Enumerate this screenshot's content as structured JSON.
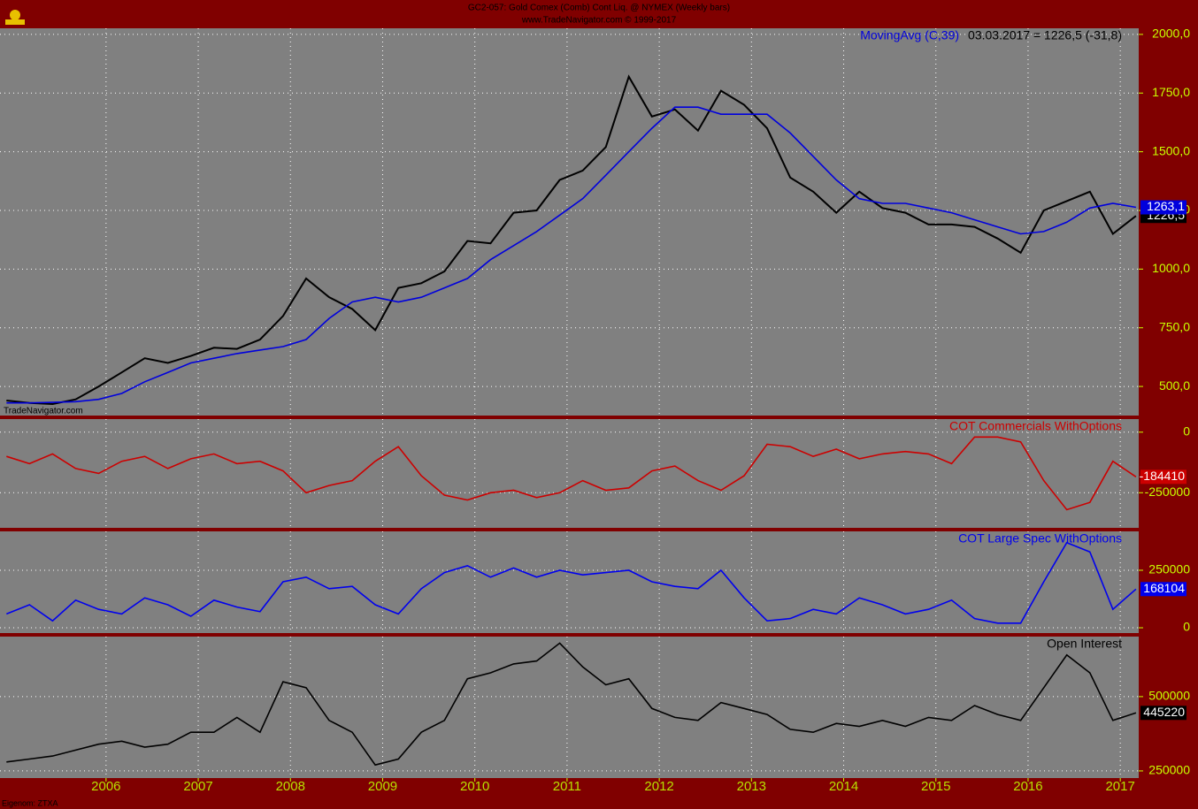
{
  "header": {
    "title": "GC2-057: Gold Comex (Comb) Cont Liq. @ NYMEX (Weekly bars)",
    "subtitle": "www.TradeNavigator.com © 1999-2017",
    "watermark": "TradeNavigator.com",
    "footer": "Eigenom: ZTXA"
  },
  "chart_data": [
    {
      "type": "line",
      "annotation": "03.03.2017 = 1226,5 (-31,8)",
      "x": [
        2004.92,
        2005.17,
        2005.42,
        2005.67,
        2005.92,
        2006.17,
        2006.42,
        2006.67,
        2006.92,
        2007.17,
        2007.42,
        2007.67,
        2007.92,
        2008.17,
        2008.42,
        2008.67,
        2008.92,
        2009.17,
        2009.42,
        2009.67,
        2009.92,
        2010.17,
        2010.42,
        2010.67,
        2010.92,
        2011.17,
        2011.42,
        2011.67,
        2011.92,
        2012.17,
        2012.42,
        2012.67,
        2012.92,
        2013.17,
        2013.42,
        2013.67,
        2013.92,
        2014.17,
        2014.42,
        2014.67,
        2014.92,
        2015.17,
        2015.42,
        2015.67,
        2015.92,
        2016.17,
        2016.42,
        2016.67,
        2016.92,
        2017.17
      ],
      "xlim": [
        2004.85,
        2017.2
      ],
      "ylim": [
        376,
        2026
      ],
      "yticks": [
        {
          "value": 500,
          "label": "500,0"
        },
        {
          "value": 750,
          "label": "750,0"
        },
        {
          "value": 1000,
          "label": "1000,0"
        },
        {
          "value": 1250,
          "label": "1250,0"
        },
        {
          "value": 1500,
          "label": "1500,0"
        },
        {
          "value": 1750,
          "label": "1750,0"
        },
        {
          "value": 2000,
          "label": "2000,0"
        }
      ],
      "grid": true,
      "series": [
        {
          "color": "#000000",
          "values": [
            440,
            430,
            425,
            445,
            500,
            560,
            620,
            600,
            630,
            665,
            660,
            700,
            800,
            960,
            880,
            830,
            740,
            920,
            940,
            990,
            1120,
            1110,
            1240,
            1250,
            1380,
            1420,
            1520,
            1820,
            1650,
            1680,
            1590,
            1760,
            1700,
            1600,
            1390,
            1330,
            1240,
            1330,
            1260,
            1240,
            1190,
            1190,
            1180,
            1130,
            1070,
            1250,
            1290,
            1330,
            1150,
            1226.5
          ],
          "last": {
            "value": 1226.5,
            "label": "1226,5"
          }
        },
        {
          "name": "MovingAvg (C,39)",
          "color": "#0000dd",
          "values": [
            430,
            430,
            432,
            435,
            445,
            470,
            520,
            560,
            600,
            620,
            640,
            655,
            670,
            700,
            790,
            860,
            880,
            860,
            880,
            920,
            960,
            1040,
            1100,
            1160,
            1230,
            1300,
            1400,
            1500,
            1600,
            1690,
            1690,
            1660,
            1660,
            1660,
            1580,
            1480,
            1380,
            1300,
            1280,
            1280,
            1260,
            1240,
            1210,
            1180,
            1150,
            1160,
            1200,
            1260,
            1280,
            1263.1
          ],
          "last": {
            "value": 1263.1,
            "label": "1263,1"
          }
        }
      ]
    },
    {
      "type": "line",
      "x": [
        2004.92,
        2005.17,
        2005.42,
        2005.67,
        2005.92,
        2006.17,
        2006.42,
        2006.67,
        2006.92,
        2007.17,
        2007.42,
        2007.67,
        2007.92,
        2008.17,
        2008.42,
        2008.67,
        2008.92,
        2009.17,
        2009.42,
        2009.67,
        2009.92,
        2010.17,
        2010.42,
        2010.67,
        2010.92,
        2011.17,
        2011.42,
        2011.67,
        2011.92,
        2012.17,
        2012.42,
        2012.67,
        2012.92,
        2013.17,
        2013.42,
        2013.67,
        2013.92,
        2014.17,
        2014.42,
        2014.67,
        2014.92,
        2015.17,
        2015.42,
        2015.67,
        2015.92,
        2016.17,
        2016.42,
        2016.67,
        2016.92,
        2017.17
      ],
      "xlim": [
        2004.85,
        2017.2
      ],
      "ylim": [
        -395000,
        54000
      ],
      "yticks": [
        -250000,
        0
      ],
      "grid": true,
      "series": [
        {
          "name": "COT Commercials WithOptions",
          "color": "#cc0000",
          "values": [
            -100000,
            -130000,
            -90000,
            -150000,
            -170000,
            -120000,
            -100000,
            -150000,
            -110000,
            -90000,
            -130000,
            -120000,
            -160000,
            -250000,
            -220000,
            -200000,
            -120000,
            -60000,
            -180000,
            -260000,
            -280000,
            -250000,
            -240000,
            -270000,
            -250000,
            -200000,
            -240000,
            -230000,
            -160000,
            -140000,
            -200000,
            -240000,
            -180000,
            -50000,
            -60000,
            -100000,
            -70000,
            -110000,
            -90000,
            -80000,
            -90000,
            -130000,
            -20000,
            -20000,
            -40000,
            -200000,
            -320000,
            -290000,
            -120000,
            -184410
          ],
          "last": {
            "value": -184410,
            "label": "-184410"
          }
        }
      ]
    },
    {
      "type": "line",
      "x": [
        2004.92,
        2005.17,
        2005.42,
        2005.67,
        2005.92,
        2006.17,
        2006.42,
        2006.67,
        2006.92,
        2007.17,
        2007.42,
        2007.67,
        2007.92,
        2008.17,
        2008.42,
        2008.67,
        2008.92,
        2009.17,
        2009.42,
        2009.67,
        2009.92,
        2010.17,
        2010.42,
        2010.67,
        2010.92,
        2011.17,
        2011.42,
        2011.67,
        2011.92,
        2012.17,
        2012.42,
        2012.67,
        2012.92,
        2013.17,
        2013.42,
        2013.67,
        2013.92,
        2014.17,
        2014.42,
        2014.67,
        2014.92,
        2015.17,
        2015.42,
        2015.67,
        2015.92,
        2016.17,
        2016.42,
        2016.67,
        2016.92,
        2017.17
      ],
      "xlim": [
        2004.85,
        2017.2
      ],
      "ylim": [
        -23000,
        419000
      ],
      "yticks": [
        0,
        250000
      ],
      "grid": true,
      "series": [
        {
          "name": "COT Large Spec WithOptions",
          "color": "#0000ee",
          "values": [
            60000,
            100000,
            30000,
            120000,
            80000,
            60000,
            130000,
            100000,
            50000,
            120000,
            90000,
            70000,
            200000,
            220000,
            170000,
            180000,
            100000,
            60000,
            170000,
            240000,
            270000,
            220000,
            260000,
            220000,
            250000,
            230000,
            240000,
            250000,
            200000,
            180000,
            170000,
            250000,
            130000,
            30000,
            40000,
            80000,
            60000,
            130000,
            100000,
            60000,
            80000,
            120000,
            40000,
            20000,
            20000,
            200000,
            370000,
            330000,
            80000,
            168104
          ],
          "last": {
            "value": 168104,
            "label": "168104"
          }
        }
      ]
    },
    {
      "type": "line",
      "x": [
        2004.92,
        2005.17,
        2005.42,
        2005.67,
        2005.92,
        2006.17,
        2006.42,
        2006.67,
        2006.92,
        2007.17,
        2007.42,
        2007.67,
        2007.92,
        2008.17,
        2008.42,
        2008.67,
        2008.92,
        2009.17,
        2009.42,
        2009.67,
        2009.92,
        2010.17,
        2010.42,
        2010.67,
        2010.92,
        2011.17,
        2011.42,
        2011.67,
        2011.92,
        2012.17,
        2012.42,
        2012.67,
        2012.92,
        2013.17,
        2013.42,
        2013.67,
        2013.92,
        2014.17,
        2014.42,
        2014.67,
        2014.92,
        2015.17,
        2015.42,
        2015.67,
        2015.92,
        2016.17,
        2016.42,
        2016.67,
        2016.92,
        2017.17
      ],
      "xlim": [
        2004.85,
        2017.2
      ],
      "xticks": [
        2006,
        2007,
        2008,
        2009,
        2010,
        2011,
        2012,
        2013,
        2014,
        2015,
        2016,
        2017
      ],
      "ylim": [
        226000,
        702000
      ],
      "yticks": [
        250000,
        500000
      ],
      "grid": true,
      "series": [
        {
          "name": "Open Interest",
          "color": "#000000",
          "values": [
            280000,
            290000,
            300000,
            320000,
            340000,
            350000,
            330000,
            340000,
            380000,
            380000,
            430000,
            380000,
            550000,
            530000,
            420000,
            380000,
            270000,
            290000,
            380000,
            420000,
            560000,
            580000,
            610000,
            620000,
            680000,
            600000,
            540000,
            560000,
            460000,
            430000,
            420000,
            480000,
            460000,
            440000,
            390000,
            380000,
            410000,
            400000,
            420000,
            400000,
            430000,
            420000,
            470000,
            440000,
            420000,
            530000,
            640000,
            580000,
            420000,
            445220
          ],
          "last": {
            "value": 445220,
            "label": "445220"
          }
        }
      ]
    }
  ]
}
